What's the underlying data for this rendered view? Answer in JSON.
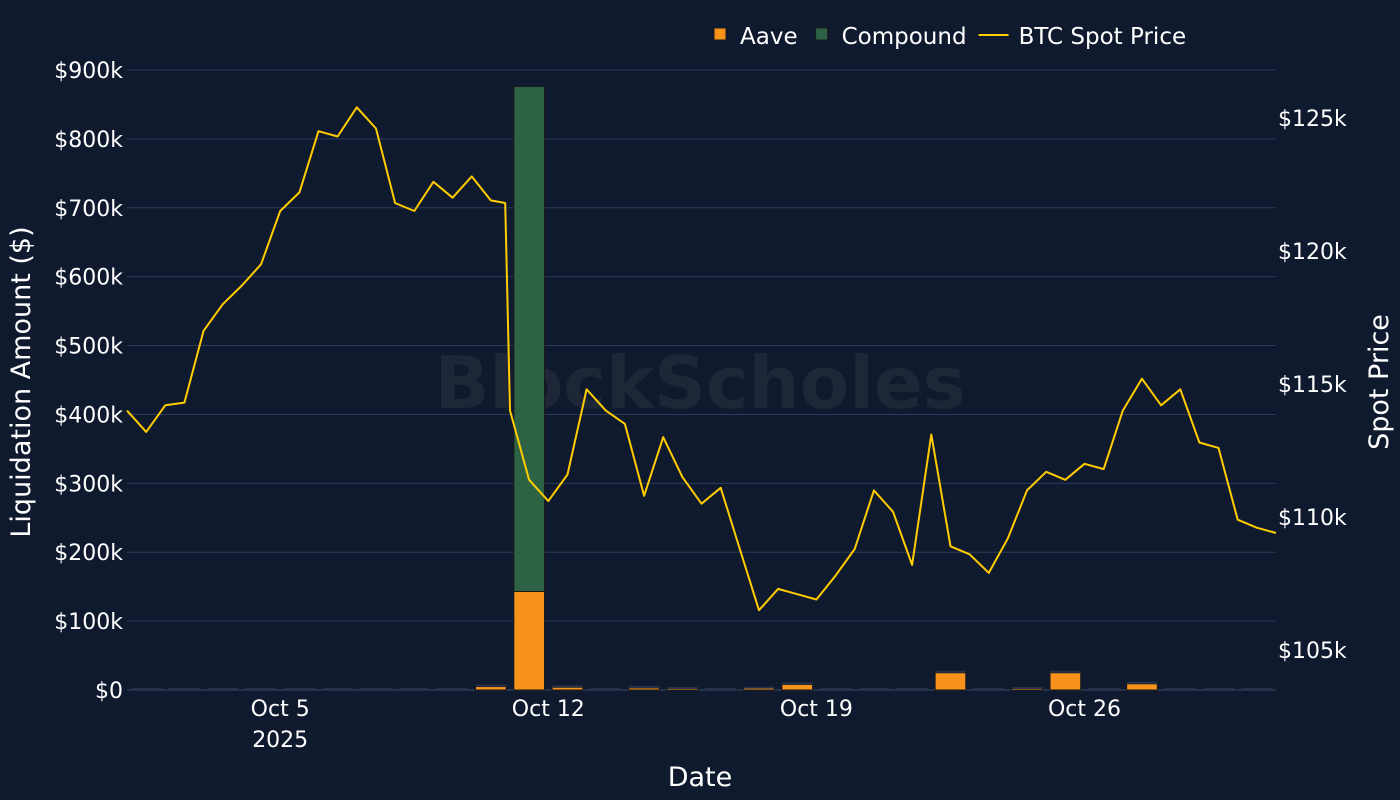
{
  "chart_data": {
    "type": "bar",
    "barmode": "stack",
    "xlabel": "Date",
    "ylabel": "Liquidation Amount ($)",
    "y2label": "Spot Price",
    "xlim": [
      "2025-10-01",
      "2025-10-31"
    ],
    "ylim": [
      0,
      900000
    ],
    "y2lim": [
      103500,
      126800
    ],
    "x_ticks": [
      {
        "date": "2025-10-05",
        "label": "Oct 5",
        "sublabel": "2025"
      },
      {
        "date": "2025-10-12",
        "label": "Oct 12",
        "sublabel": ""
      },
      {
        "date": "2025-10-19",
        "label": "Oct 19",
        "sublabel": ""
      },
      {
        "date": "2025-10-26",
        "label": "Oct 26",
        "sublabel": ""
      }
    ],
    "y_ticks": [
      {
        "value": 0,
        "label": "$0"
      },
      {
        "value": 100000,
        "label": "$100k"
      },
      {
        "value": 200000,
        "label": "$200k"
      },
      {
        "value": 300000,
        "label": "$300k"
      },
      {
        "value": 400000,
        "label": "$400k"
      },
      {
        "value": 500000,
        "label": "$500k"
      },
      {
        "value": 600000,
        "label": "$600k"
      },
      {
        "value": 700000,
        "label": "$700k"
      },
      {
        "value": 800000,
        "label": "$800k"
      },
      {
        "value": 900000,
        "label": "$900k"
      }
    ],
    "y2_ticks": [
      {
        "value": 105000,
        "label": "$105k"
      },
      {
        "value": 110000,
        "label": "$110k"
      },
      {
        "value": 115000,
        "label": "$115k"
      },
      {
        "value": 120000,
        "label": "$120k"
      },
      {
        "value": 125000,
        "label": "$125k"
      }
    ],
    "legend_position": "top-right",
    "grid": true,
    "watermark": "BlockScholes",
    "categories": [
      "2025-10-01",
      "2025-10-02",
      "2025-10-03",
      "2025-10-04",
      "2025-10-05",
      "2025-10-06",
      "2025-10-07",
      "2025-10-08",
      "2025-10-09",
      "2025-10-10",
      "2025-10-11",
      "2025-10-12",
      "2025-10-13",
      "2025-10-14",
      "2025-10-15",
      "2025-10-16",
      "2025-10-17",
      "2025-10-18",
      "2025-10-19",
      "2025-10-20",
      "2025-10-21",
      "2025-10-22",
      "2025-10-23",
      "2025-10-24",
      "2025-10-25",
      "2025-10-26",
      "2025-10-27",
      "2025-10-28",
      "2025-10-29",
      "2025-10-30"
    ],
    "series": [
      {
        "name": "Aave",
        "type": "bar",
        "color": "#f7931a",
        "values": [
          0,
          0,
          0,
          0,
          0,
          0,
          0,
          0,
          0,
          5000,
          143000,
          4000,
          0,
          3000,
          1500,
          0,
          2000,
          8000,
          0,
          0,
          0,
          25000,
          0,
          1500,
          25000,
          0,
          9000,
          0,
          0,
          0
        ]
      },
      {
        "name": "Compound",
        "type": "bar",
        "color": "#2d6244",
        "values": [
          0,
          0,
          0,
          0,
          0,
          0,
          0,
          0,
          0,
          0,
          733000,
          0,
          0,
          0,
          0,
          0,
          0,
          0,
          0,
          0,
          0,
          0,
          0,
          0,
          0,
          0,
          0,
          0,
          0,
          0
        ]
      },
      {
        "name": "BTC Spot Price",
        "type": "line",
        "color": "#ffcc00",
        "x": [
          "2025-10-01T00:00",
          "2025-10-01T12:00",
          "2025-10-02T00:00",
          "2025-10-02T12:00",
          "2025-10-03T00:00",
          "2025-10-03T12:00",
          "2025-10-04T00:00",
          "2025-10-04T12:00",
          "2025-10-05T00:00",
          "2025-10-05T12:00",
          "2025-10-06T00:00",
          "2025-10-06T12:00",
          "2025-10-07T00:00",
          "2025-10-07T12:00",
          "2025-10-08T00:00",
          "2025-10-08T12:00",
          "2025-10-09T00:00",
          "2025-10-09T12:00",
          "2025-10-10T00:00",
          "2025-10-10T12:00",
          "2025-10-10T21:00",
          "2025-10-11T00:00",
          "2025-10-11T12:00",
          "2025-10-12T00:00",
          "2025-10-12T12:00",
          "2025-10-13T00:00",
          "2025-10-13T12:00",
          "2025-10-14T00:00",
          "2025-10-14T12:00",
          "2025-10-15T00:00",
          "2025-10-15T12:00",
          "2025-10-16T00:00",
          "2025-10-16T12:00",
          "2025-10-17T00:00",
          "2025-10-17T12:00",
          "2025-10-18T00:00",
          "2025-10-18T12:00",
          "2025-10-19T00:00",
          "2025-10-19T12:00",
          "2025-10-20T00:00",
          "2025-10-20T12:00",
          "2025-10-21T00:00",
          "2025-10-21T12:00",
          "2025-10-22T00:00",
          "2025-10-22T12:00",
          "2025-10-23T00:00",
          "2025-10-23T12:00",
          "2025-10-24T00:00",
          "2025-10-24T12:00",
          "2025-10-25T00:00",
          "2025-10-25T12:00",
          "2025-10-26T00:00",
          "2025-10-26T12:00",
          "2025-10-27T00:00",
          "2025-10-27T12:00",
          "2025-10-28T00:00",
          "2025-10-28T12:00",
          "2025-10-29T00:00",
          "2025-10-29T12:00",
          "2025-10-30T00:00",
          "2025-10-30T12:00",
          "2025-10-31T00:00"
        ],
        "values": [
          114000,
          113200,
          114200,
          114300,
          117000,
          118000,
          118700,
          119500,
          121500,
          122200,
          124500,
          124300,
          125400,
          124600,
          121800,
          121500,
          122600,
          122000,
          122800,
          121900,
          121800,
          114000,
          111400,
          110600,
          111600,
          114800,
          114000,
          113500,
          110800,
          113000,
          111500,
          110500,
          111100,
          108800,
          106500,
          107300,
          107100,
          106900,
          107800,
          108800,
          111000,
          110200,
          108200,
          113100,
          108900,
          108600,
          107900,
          109200,
          111000,
          111700,
          111400,
          112000,
          111800,
          114000,
          115200,
          114200,
          114800,
          112800,
          112600,
          109900,
          109600,
          109400
        ]
      }
    ]
  }
}
